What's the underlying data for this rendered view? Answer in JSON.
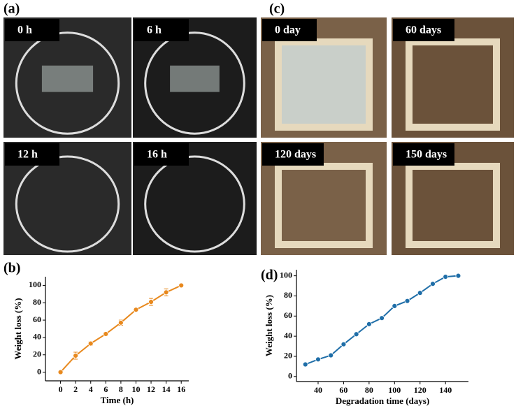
{
  "panels": [
    {
      "label": "(a)",
      "photos": [
        "0 h",
        "6 h",
        "12 h",
        "16 h"
      ]
    },
    {
      "label": "(c)",
      "photos": [
        "0 day",
        "60 days",
        "120 days",
        "150 days"
      ]
    }
  ],
  "chart_data": [
    {
      "type": "line",
      "panel_label": "(b)",
      "x_label": "Time (h)",
      "y_label": "Weight loss (%)",
      "x": [
        0,
        2,
        4,
        6,
        8,
        10,
        12,
        14,
        16
      ],
      "values": [
        0,
        19,
        33,
        44,
        57,
        72,
        81,
        92,
        100
      ],
      "errors": [
        0,
        4,
        2,
        2,
        3,
        2,
        4,
        4,
        1
      ],
      "color": "#e8891e",
      "xlim": [
        -2,
        17
      ],
      "xticks": [
        0,
        2,
        4,
        6,
        8,
        10,
        12,
        14,
        16
      ],
      "ylim": [
        -10,
        110
      ],
      "yticks": [
        0,
        20,
        40,
        60,
        80,
        100
      ]
    },
    {
      "type": "line",
      "panel_label": "(d)",
      "x_label": "Degradation time (days)",
      "y_label": "Weight loss (%)",
      "x": [
        30,
        40,
        50,
        60,
        70,
        80,
        90,
        100,
        110,
        120,
        130,
        140,
        150
      ],
      "values": [
        12,
        17,
        21,
        32,
        42,
        52,
        58,
        70,
        75,
        83,
        92,
        99,
        100
      ],
      "color": "#1f6ea8",
      "xlim": [
        23,
        158
      ],
      "xticks": [
        40,
        60,
        80,
        100,
        120,
        140
      ],
      "ylim": [
        -5,
        106
      ],
      "yticks": [
        0,
        20,
        40,
        60,
        80,
        100
      ]
    }
  ]
}
